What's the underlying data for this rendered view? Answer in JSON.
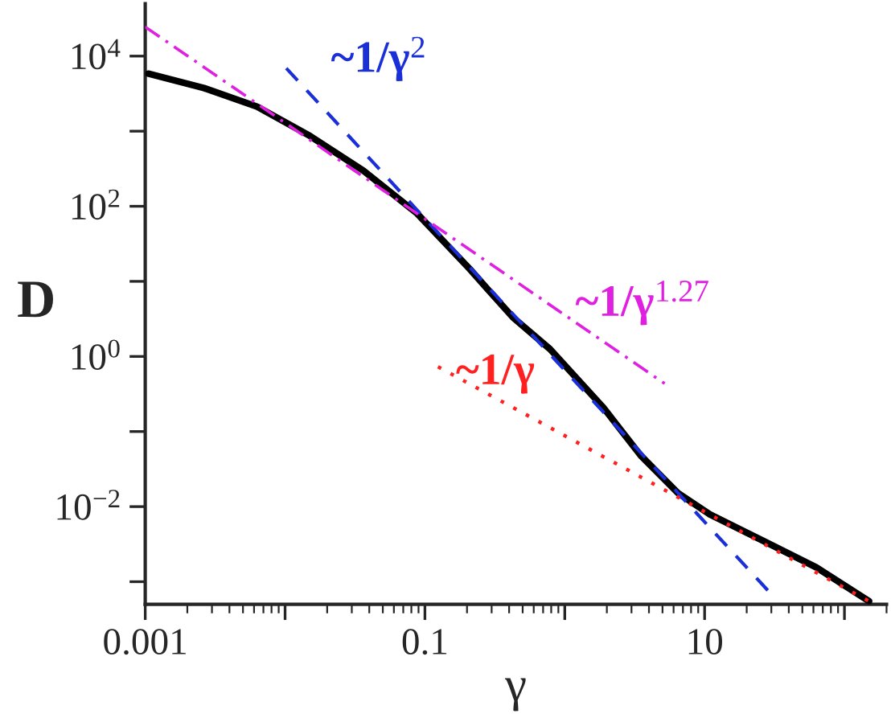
{
  "chart_data": {
    "type": "line",
    "xlabel": "γ",
    "ylabel": "D",
    "log": "xy",
    "grid": false,
    "legend": false,
    "xlim": [
      0.001,
      200
    ],
    "ylim": [
      0.0005,
      50000
    ],
    "xticks": [
      0.001,
      {
        "value": 0.01,
        "label": null
      },
      0.1,
      {
        "value": 1,
        "label": null
      },
      10,
      {
        "value": 100,
        "label": null
      }
    ],
    "yticks": [
      {
        "value": 0.001,
        "label": null
      },
      {
        "value": 0.01,
        "label": "10$^{−2}$"
      },
      {
        "value": 0.1,
        "label": null
      },
      {
        "value": 1,
        "label": "10$^{0}$"
      },
      {
        "value": 10,
        "label": null
      },
      {
        "value": 100,
        "label": "10$^{2}$"
      },
      {
        "value": 1000,
        "label": null
      },
      {
        "value": 10000,
        "label": "10$^{4}$"
      }
    ],
    "series": [
      {
        "color": "#000000",
        "line_style": "solid",
        "x": [
          0.00105,
          0.00263,
          0.0063,
          0.0151,
          0.0363,
          0.0877,
          0.21,
          0.286,
          0.425,
          0.785,
          1.89,
          3.49,
          6.44,
          10.9,
          26.3,
          63,
          150
        ],
        "values": [
          5840,
          3750,
          2120,
          863,
          298,
          80.5,
          14.5,
          7.57,
          3.33,
          1.25,
          0.208,
          0.048,
          0.0152,
          0.0079,
          0.0035,
          0.00155,
          0.00055
        ]
      },
      {
        "name": "~1/γ$^{2}$",
        "color": "#1a2fd8",
        "line_style": "dashed",
        "x": [
          0.0102,
          29.2
        ],
        "values": [
          6900,
          0.00072
        ]
      },
      {
        "name": "~1/γ$^{1.27}$",
        "color": "#e020e0",
        "line_style": "dashdot",
        "x": [
          0.001,
          5.18
        ],
        "values": [
          24500,
          0.435
        ]
      },
      {
        "name": "~1/γ",
        "color": "#ff2020",
        "line_style": "dotted",
        "x": [
          0.124,
          150
        ],
        "values": [
          0.73,
          0.00055
        ]
      }
    ]
  }
}
